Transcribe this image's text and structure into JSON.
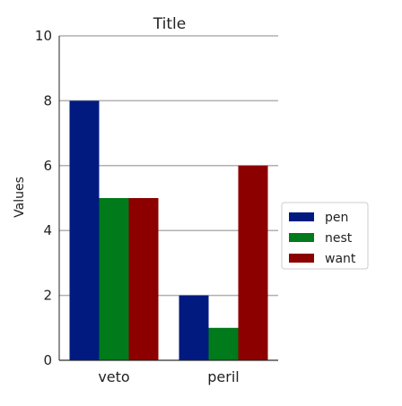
{
  "chart_data": {
    "type": "bar",
    "title": "Title",
    "xlabel": "",
    "ylabel": "Values",
    "categories": [
      "veto",
      "peril"
    ],
    "series": [
      {
        "name": "pen",
        "values": [
          8,
          2
        ],
        "color": "#001a80"
      },
      {
        "name": "nest",
        "values": [
          5,
          1
        ],
        "color": "#007a1a"
      },
      {
        "name": "want",
        "values": [
          5,
          6
        ],
        "color": "#8c0000"
      }
    ],
    "ylim": [
      0,
      10
    ],
    "yticks": [
      0,
      2,
      4,
      6,
      8,
      10
    ],
    "grid": "horizontal",
    "legend": "right"
  }
}
